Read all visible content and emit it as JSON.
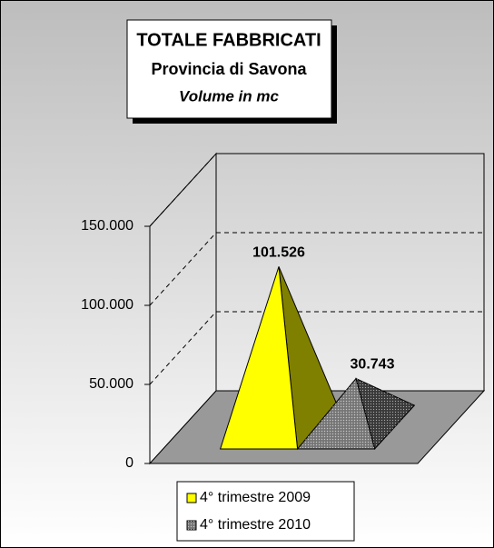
{
  "chart_data": {
    "type": "pyramid",
    "title": "TOTALE FABBRICATI",
    "subtitle": "Provincia di Savona",
    "ylabel": "Volume in mc",
    "series": [
      {
        "name": "4° trimestre 2009",
        "color": "#ffff00",
        "values": [
          101526
        ],
        "value_labels": [
          "101.526"
        ]
      },
      {
        "name": "4° trimestre 2010",
        "color": "#808080",
        "values": [
          30743
        ],
        "value_labels": [
          "30.743"
        ],
        "hatch": true
      }
    ],
    "ylim": [
      0,
      150000
    ],
    "yticks": [
      0,
      {
        "value": 50000,
        "label": "50.000"
      },
      {
        "value": 100000,
        "label": "100.000"
      },
      {
        "value": 150000,
        "label": "150.000"
      }
    ],
    "grid": true,
    "legend": "bottom"
  }
}
